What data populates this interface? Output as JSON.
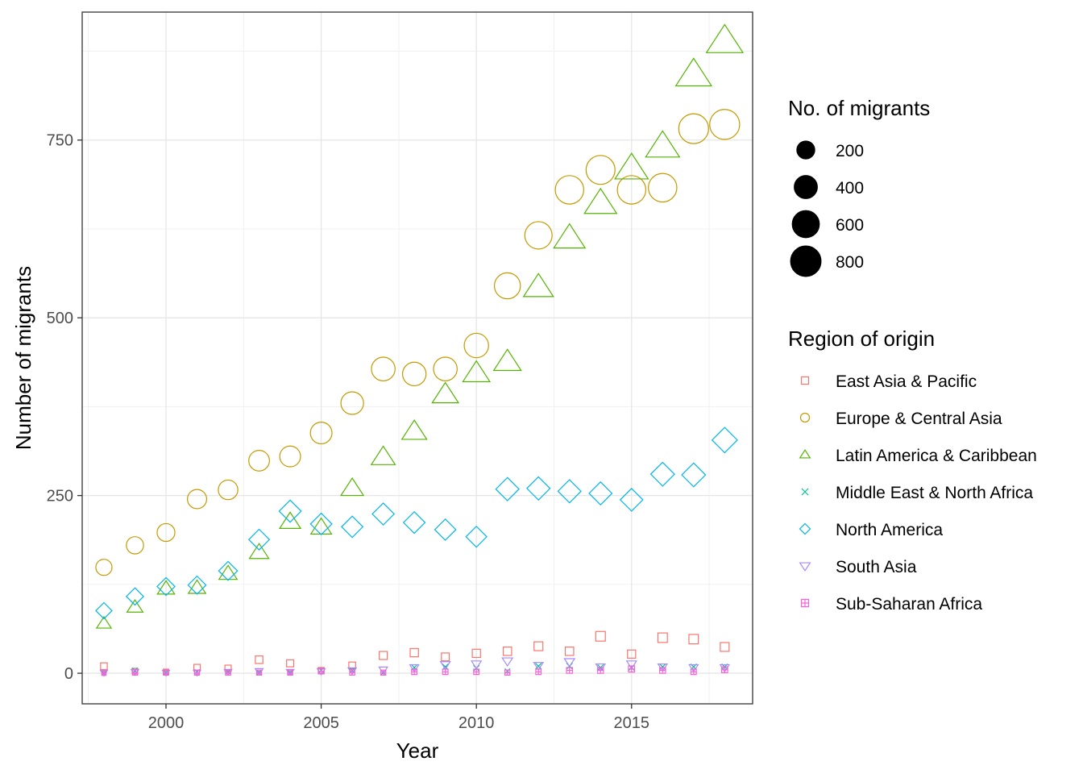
{
  "chart_data": {
    "type": "scatter",
    "xlabel": "Year",
    "ylabel": "Number of migrants",
    "xlim": [
      1997.3,
      2018.9
    ],
    "ylim": [
      -43,
      930
    ],
    "x_ticks": [
      2000,
      2005,
      2010,
      2015
    ],
    "y_ticks": [
      0,
      250,
      500,
      750
    ],
    "grid": true,
    "legend_position": "right",
    "size_legend": {
      "title": "No. of migrants",
      "entries": [
        {
          "label": "200",
          "value": 200
        },
        {
          "label": "400",
          "value": 400
        },
        {
          "label": "600",
          "value": 600
        },
        {
          "label": "800",
          "value": 800
        }
      ]
    },
    "shape_legend_title": "Region of origin",
    "series": [
      {
        "name": "East Asia & Pacific",
        "color": "#F8766D",
        "shape": "square",
        "x": [
          1998,
          1999,
          2000,
          2001,
          2002,
          2003,
          2004,
          2005,
          2006,
          2007,
          2008,
          2009,
          2010,
          2011,
          2012,
          2013,
          2014,
          2015,
          2016,
          2017,
          2018
        ],
        "values": [
          10,
          3,
          2,
          8,
          7,
          19,
          14,
          4,
          11,
          25,
          29,
          23,
          28,
          31,
          38,
          31,
          52,
          27,
          50,
          48,
          37
        ]
      },
      {
        "name": "Europe & Central Asia",
        "color": "#C49A00",
        "shape": "circle",
        "x": [
          1998,
          1999,
          2000,
          2001,
          2002,
          2003,
          2004,
          2005,
          2006,
          2007,
          2008,
          2009,
          2010,
          2011,
          2012,
          2013,
          2014,
          2015,
          2016,
          2017,
          2018
        ],
        "values": [
          149,
          180,
          198,
          245,
          258,
          299,
          305,
          338,
          380,
          428,
          421,
          428,
          461,
          545,
          616,
          680,
          708,
          680,
          683,
          766,
          772
        ]
      },
      {
        "name": "Latin America & Caribbean",
        "color": "#53B400",
        "shape": "triangle",
        "x": [
          1998,
          1999,
          2000,
          2001,
          2002,
          2003,
          2004,
          2005,
          2006,
          2007,
          2008,
          2009,
          2010,
          2011,
          2012,
          2013,
          2014,
          2015,
          2016,
          2017,
          2018
        ],
        "values": [
          70,
          93,
          119,
          120,
          140,
          170,
          213,
          205,
          260,
          304,
          340,
          392,
          422,
          438,
          543,
          612,
          661,
          710,
          741,
          842,
          889
        ]
      },
      {
        "name": "Middle East & North Africa",
        "color": "#00C094",
        "shape": "cross",
        "x": [
          1998,
          1999,
          2000,
          2001,
          2002,
          2003,
          2004,
          2005,
          2006,
          2007,
          2008,
          2009,
          2010,
          2011,
          2012,
          2013,
          2014,
          2015,
          2016,
          2017,
          2018
        ],
        "values": [
          0,
          4,
          1,
          2,
          2,
          1,
          1,
          4,
          4,
          1,
          8,
          9,
          7,
          3,
          10,
          10,
          8,
          8,
          9,
          9,
          9
        ]
      },
      {
        "name": "North America",
        "color": "#00B6EB",
        "shape": "diamond",
        "x": [
          1998,
          1999,
          2000,
          2001,
          2002,
          2003,
          2004,
          2005,
          2006,
          2007,
          2008,
          2009,
          2010,
          2011,
          2012,
          2013,
          2014,
          2015,
          2016,
          2017,
          2018
        ],
        "values": [
          88,
          108,
          122,
          124,
          144,
          188,
          228,
          210,
          206,
          224,
          212,
          202,
          192,
          259,
          260,
          256,
          253,
          244,
          280,
          279,
          328
        ]
      },
      {
        "name": "South Asia",
        "color": "#A58AFF",
        "shape": "triangle-down",
        "x": [
          1998,
          1999,
          2000,
          2001,
          2002,
          2003,
          2004,
          2005,
          2006,
          2007,
          2008,
          2009,
          2010,
          2011,
          2012,
          2013,
          2014,
          2015,
          2016,
          2017,
          2018
        ],
        "values": [
          1,
          2,
          1,
          1,
          2,
          3,
          2,
          3,
          4,
          5,
          8,
          12,
          13,
          17,
          11,
          16,
          9,
          13,
          9,
          8,
          8
        ]
      },
      {
        "name": "Sub-Saharan Africa",
        "color": "#FB61D7",
        "shape": "square-plus",
        "x": [
          1998,
          1999,
          2000,
          2001,
          2002,
          2003,
          2004,
          2005,
          2006,
          2007,
          2008,
          2009,
          2010,
          2011,
          2012,
          2013,
          2014,
          2015,
          2016,
          2017,
          2018
        ],
        "values": [
          0,
          1,
          1,
          1,
          1,
          1,
          1,
          3,
          1,
          1,
          2,
          2,
          2,
          1,
          2,
          4,
          4,
          6,
          4,
          2,
          5
        ]
      }
    ]
  }
}
